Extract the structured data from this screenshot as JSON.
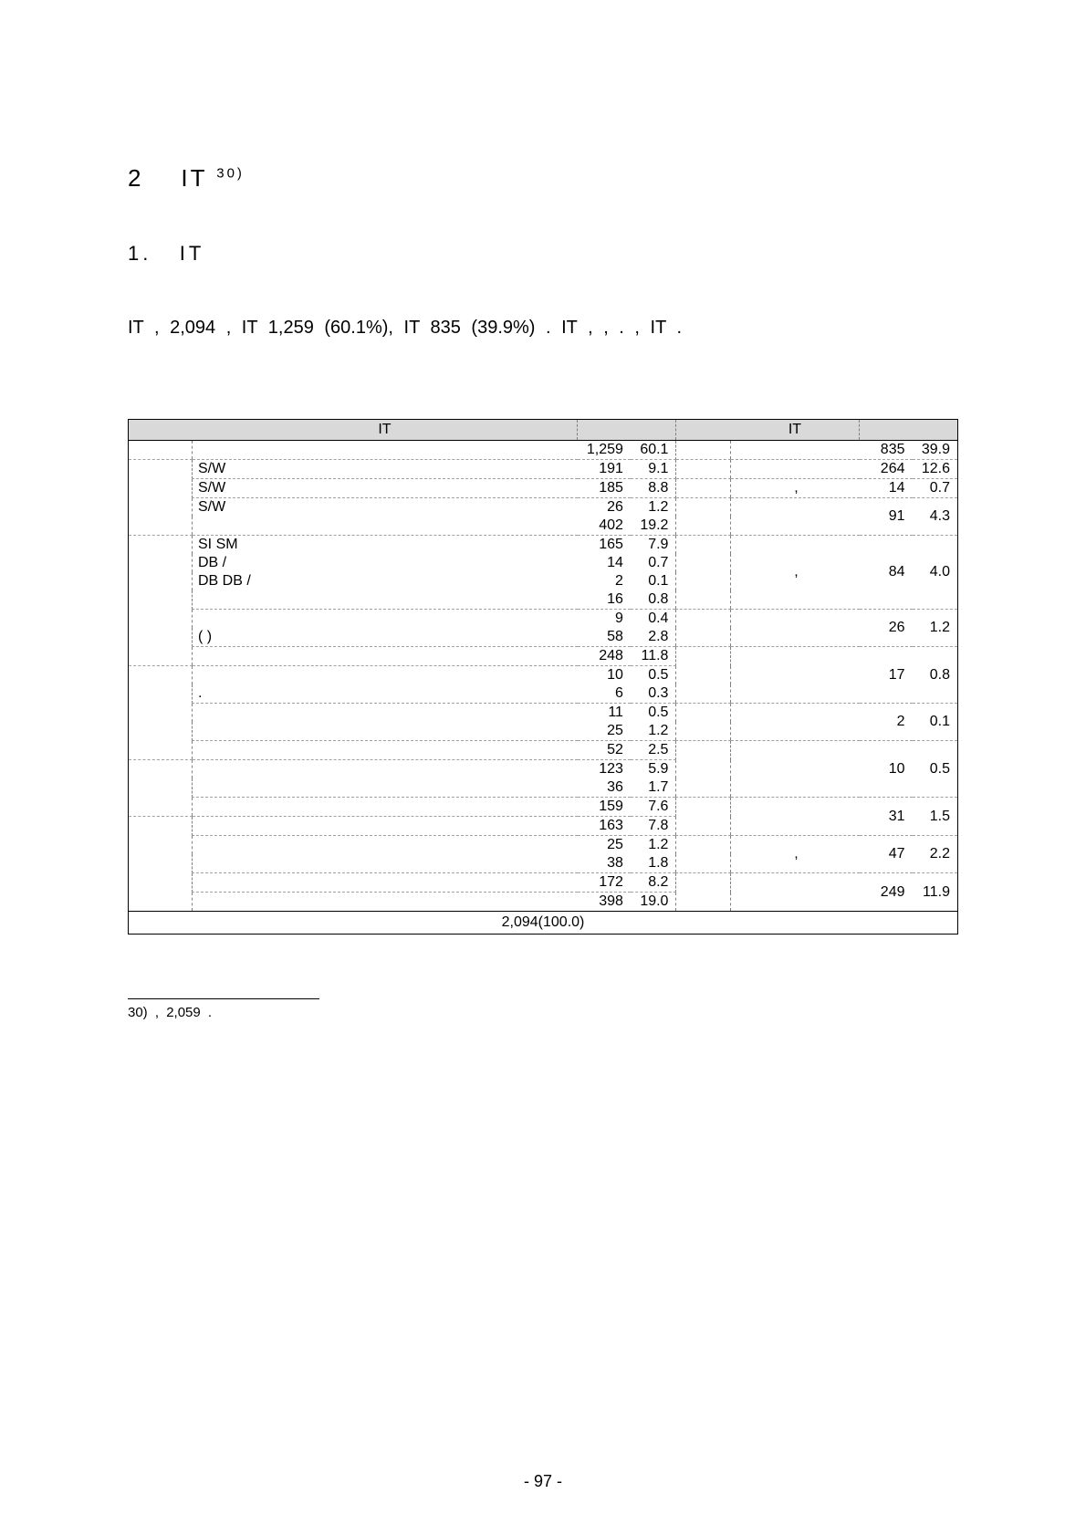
{
  "heading": {
    "num": "2",
    "text": "IT",
    "sup": "30)"
  },
  "subheading": {
    "num": "1.",
    "text": "IT"
  },
  "paragraph": "IT                                ,                                         2,094         ,  IT                 1,259  (60.1%),     IT                835    (39.9%)                . IT                                                      ,                                  ,                                            .        ,     IT                                                                               .",
  "table": {
    "header": {
      "left_group": "IT",
      "left_n_hdr": "",
      "left_p_hdr": "",
      "right_group": "IT",
      "right_n_hdr": "",
      "right_p_hdr": ""
    },
    "left_total": {
      "n": "1,259",
      "p": "60.1"
    },
    "right_total": {
      "n": "835",
      "p": "39.9"
    },
    "left_rows": [
      {
        "label": "S/W",
        "n": "191",
        "p": "9.1"
      },
      {
        "label": "S/W",
        "n": "185",
        "p": "8.8"
      },
      {
        "label": "S/W",
        "n": "26",
        "p": "1.2"
      },
      {
        "label": "",
        "n": "402",
        "p": "19.2"
      },
      {
        "label": "SI     SM",
        "n": "165",
        "p": "7.9"
      },
      {
        "label": "       DB        /",
        "n": "14",
        "p": "0.7"
      },
      {
        "label": "DB   DB        /",
        "n": "2",
        "p": "0.1"
      },
      {
        "label": "",
        "n": "16",
        "p": "0.8"
      },
      {
        "label": "",
        "n": "9",
        "p": "0.4"
      },
      {
        "label": "        (                   )",
        "n": "58",
        "p": "2.8"
      },
      {
        "label": "",
        "n": "248",
        "p": "11.8"
      },
      {
        "label": "",
        "n": "10",
        "p": "0.5"
      },
      {
        "label": "        .",
        "n": "6",
        "p": "0.3"
      },
      {
        "label": "",
        "n": "11",
        "p": "0.5"
      },
      {
        "label": "",
        "n": "25",
        "p": "1.2"
      },
      {
        "label": "",
        "n": "52",
        "p": "2.5"
      },
      {
        "label": "",
        "n": "123",
        "p": "5.9"
      },
      {
        "label": "",
        "n": "36",
        "p": "1.7"
      },
      {
        "label": "",
        "n": "159",
        "p": "7.6"
      },
      {
        "label": "",
        "n": "163",
        "p": "7.8"
      },
      {
        "label": "",
        "n": "25",
        "p": "1.2"
      },
      {
        "label": "",
        "n": "38",
        "p": "1.8"
      },
      {
        "label": "",
        "n": "172",
        "p": "8.2"
      },
      {
        "label": "",
        "n": "398",
        "p": "19.0"
      }
    ],
    "right_rows": [
      {
        "label": "",
        "n": "264",
        "p": "12.6",
        "span": 1
      },
      {
        "label": ",",
        "n": "14",
        "p": "0.7",
        "span": 1
      },
      {
        "label": "",
        "n": "91",
        "p": "4.3",
        "span": 2
      },
      {
        "label": ",",
        "n": "84",
        "p": "4.0",
        "span": 4
      },
      {
        "label": "",
        "n": "26",
        "p": "1.2",
        "span": 2
      },
      {
        "label": "",
        "n": "17",
        "p": "0.8",
        "span": 3
      },
      {
        "label": "",
        "n": "2",
        "p": "0.1",
        "span": 2
      },
      {
        "label": "",
        "n": "10",
        "p": "0.5",
        "span": 3
      },
      {
        "label": "",
        "n": "31",
        "p": "1.5",
        "span": 2
      },
      {
        "label": ",",
        "n": "47",
        "p": "2.2",
        "span": 2
      },
      {
        "label": "",
        "n": "249",
        "p": "11.9",
        "span": 2
      }
    ],
    "grand_total": "2,094(100.0)"
  },
  "footnote": {
    "num": "30)",
    "text": "                                                   ,                        2,059                                ."
  },
  "page_number": "- 97 -"
}
